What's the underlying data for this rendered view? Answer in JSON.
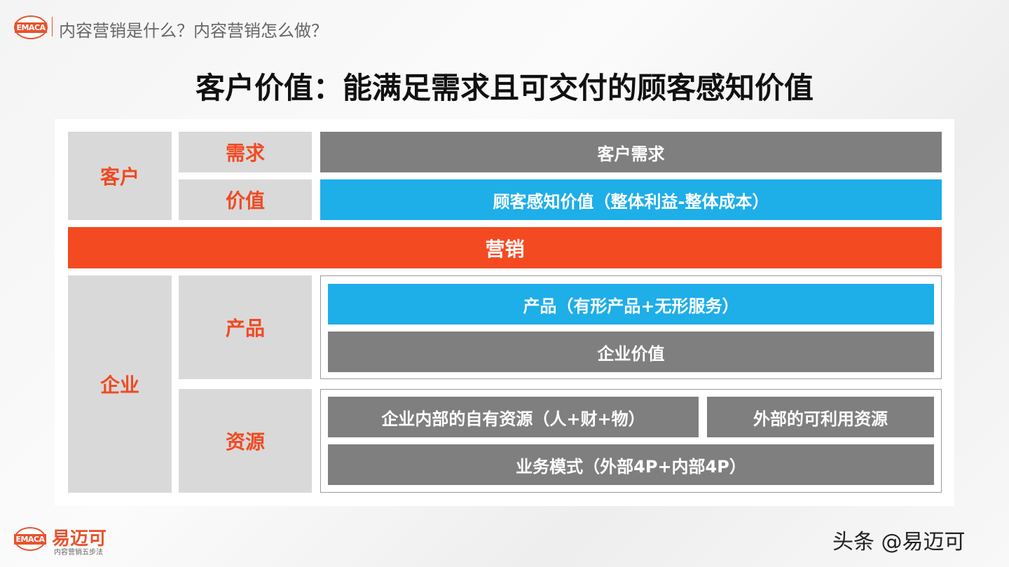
{
  "header": {
    "logo_text": "EMACA",
    "subtitle": "内容营销是什么？内容营销怎么做？"
  },
  "title": "客户价值：能满足需求且可交付的顾客感知价值",
  "diagram": {
    "customer": {
      "label": "客户",
      "need_label": "需求",
      "value_label": "价值",
      "need_bar": "客户需求",
      "value_bar": "顾客感知价值（整体利益-整体成本）"
    },
    "marketing": "营销",
    "enterprise": {
      "label": "企业",
      "product_label": "产品",
      "resource_label": "资源",
      "product_bar": "产品（有形产品+无形服务）",
      "enterprise_value_bar": "企业价值",
      "internal_resources": "企业内部的自有资源（人+财+物）",
      "external_resources": "外部的可利用资源",
      "business_model": "业务模式（外部4P+内部4P）"
    }
  },
  "footer": {
    "logo_text": "EMACA",
    "brand": "易迈可",
    "brand_tagline": "内容营销五步法",
    "watermark": "头条 @易迈可"
  },
  "colors": {
    "gray": "#7f7f7f",
    "blue": "#1eaee8",
    "red": "#f44a22",
    "label": "#f04a23",
    "label_bg": "#d9d9d9"
  }
}
